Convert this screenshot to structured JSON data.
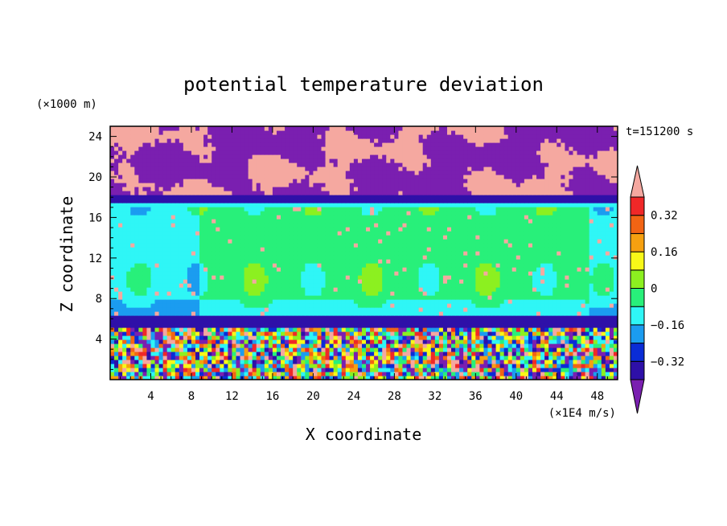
{
  "chart_data": {
    "type": "heatmap",
    "title": "potential temperature deviation",
    "xlabel": "X coordinate",
    "ylabel": "Z coordinate",
    "x_unit": "(×1E4 m/s)",
    "y_unit": "(×1000 m)",
    "time_label": "t=151200 s",
    "xlim": [
      0,
      50
    ],
    "ylim": [
      0,
      25
    ],
    "x_ticks": [
      4,
      8,
      12,
      16,
      20,
      24,
      28,
      32,
      36,
      40,
      44,
      48
    ],
    "x_tick_labels": [
      "4",
      "8",
      "12",
      "16",
      "20",
      "24",
      "28",
      "32",
      "36",
      "40",
      "44",
      "48"
    ],
    "y_ticks": [
      4,
      8,
      12,
      16,
      20,
      24
    ],
    "y_tick_labels": [
      "4",
      "8",
      "12",
      "16",
      "20",
      "24"
    ],
    "colorbar": {
      "levels": [
        -0.4,
        -0.32,
        -0.24,
        -0.16,
        -0.08,
        0,
        0.08,
        0.16,
        0.24,
        0.32,
        0.4
      ],
      "labelled_levels": [
        0.32,
        0.16,
        0,
        -0.16,
        -0.32
      ],
      "labels": [
        "0.32",
        "0.16",
        "0",
        "−0.16",
        "−0.32"
      ],
      "colors": [
        "#7a1fb0",
        "#2e10a8",
        "#0a2cd6",
        "#1b9cf0",
        "#2ff6f6",
        "#28f07a",
        "#8cf020",
        "#f8f818",
        "#f6a010",
        "#f26414",
        "#f02828",
        "#f5a8a0"
      ],
      "extend": "both"
    },
    "layers": [
      {
        "z_range": [
          17.5,
          25
        ],
        "description": "mixed -0.40 and +0.40 patches"
      },
      {
        "z_range": [
          5.5,
          17.5
        ],
        "value_range": [
          -0.16,
          0.16
        ],
        "dominant": -0.08
      },
      {
        "z_range": [
          0,
          5.5
        ],
        "description": "highly variable, full range"
      }
    ]
  }
}
